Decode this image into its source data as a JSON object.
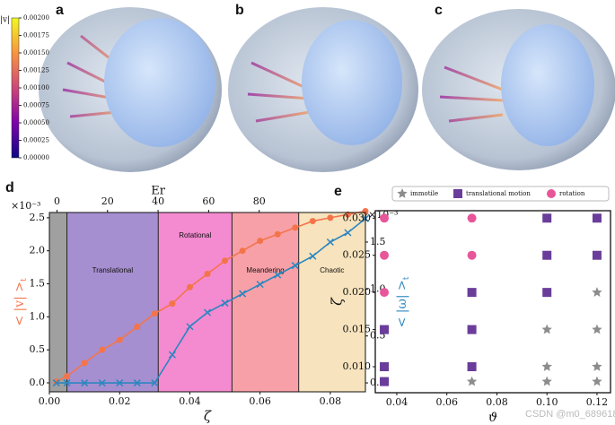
{
  "panels": [
    "a",
    "b",
    "c",
    "d",
    "e"
  ],
  "watermark": "CSDN @m0_68961828",
  "chart_data": [
    {
      "type": "colorbar",
      "label": "|v|",
      "colors": [
        "#0d0887",
        "#7e03a8",
        "#cc4778",
        "#f89540",
        "#f0f921"
      ],
      "lim": [
        0,
        0.002
      ],
      "ticks": [
        {
          "value": 0,
          "label": "0.00000"
        },
        {
          "value": 0.00025,
          "label": "0.00025"
        },
        {
          "value": 0.0005,
          "label": "0.00050"
        },
        {
          "value": 0.00075,
          "label": "0.00075"
        },
        {
          "value": 0.001,
          "label": "0.00100"
        },
        {
          "value": 0.00125,
          "label": "0.00125"
        },
        {
          "value": 0.0015,
          "label": "0.00150"
        },
        {
          "value": 0.00175,
          "label": "0.00175"
        },
        {
          "value": 0.002,
          "label": "0.00200"
        }
      ]
    },
    {
      "type": "line",
      "xlabel": "ζ",
      "x2label": "Er",
      "ylabel": "< |v| >",
      "ylabel_sub": "t",
      "y2label": "< |ω| >",
      "y2label_sub": "t",
      "yexponent": "×10⁻³",
      "y2exponent": "×10⁻³",
      "xlim": [
        0,
        0.09
      ],
      "xticks": [
        {
          "value": 0,
          "label": "0.00"
        },
        {
          "value": 0.02,
          "label": "0.02"
        },
        {
          "value": 0.04,
          "label": "0.04"
        },
        {
          "value": 0.06,
          "label": "0.06"
        },
        {
          "value": 0.08,
          "label": "0.08"
        }
      ],
      "x2lim": [
        -3,
        122
      ],
      "x2ticks": [
        0,
        20,
        40,
        60,
        80
      ],
      "ylim": [
        -0.136,
        2.58
      ],
      "yticks": [
        {
          "value": 0,
          "label": "0.0"
        },
        {
          "value": 0.5,
          "label": "0.5"
        },
        {
          "value": 1,
          "label": "1.0"
        },
        {
          "value": 1.5,
          "label": "1.5"
        },
        {
          "value": 2,
          "label": "2.0"
        },
        {
          "value": 2.5,
          "label": "2.5"
        }
      ],
      "y2lim": [
        -0.095,
        1.815
      ],
      "y2ticks": [
        {
          "value": 0,
          "label": "0.0"
        },
        {
          "value": 0.5,
          "label": "0.5"
        },
        {
          "value": 1,
          "label": "1.0"
        },
        {
          "value": 1.5,
          "label": "1.5"
        }
      ],
      "regions": [
        {
          "start": 0,
          "end": 0.005,
          "color": "#a0a0a0"
        },
        {
          "label": "Translational",
          "start": 0.005,
          "end": 0.031,
          "color": "#a68fd0"
        },
        {
          "label": "Rotational",
          "start": 0.031,
          "end": 0.052,
          "color": "#f48ad0"
        },
        {
          "label": "Meandering",
          "start": 0.052,
          "end": 0.071,
          "color": "#f7a0a8"
        },
        {
          "label": "Chaotic",
          "start": 0.071,
          "end": 0.09,
          "color": "#f7e3bd"
        }
      ],
      "x": [
        0.002,
        0.005,
        0.01,
        0.015,
        0.02,
        0.025,
        0.03,
        0.035,
        0.04,
        0.045,
        0.05,
        0.055,
        0.06,
        0.065,
        0.07,
        0.075,
        0.08,
        0.085,
        0.09
      ],
      "series": [
        {
          "color": "#f4744a",
          "marker": "circle",
          "values": [
            0.02,
            0.1,
            0.3,
            0.5,
            0.65,
            0.85,
            1.05,
            1.2,
            1.45,
            1.65,
            1.85,
            2.0,
            2.15,
            2.25,
            2.35,
            2.45,
            2.5,
            2.55,
            2.6
          ]
        },
        {
          "color": "#2b86c0",
          "marker": "x",
          "axis": "y2",
          "values": [
            0,
            0,
            0,
            0,
            0,
            0,
            0,
            0.3,
            0.6,
            0.75,
            0.85,
            0.95,
            1.05,
            1.15,
            1.25,
            1.35,
            1.5,
            1.6,
            1.75
          ]
        }
      ]
    },
    {
      "type": "scatter",
      "xlabel": "ϑ",
      "ylabel": "ζ",
      "xlim": [
        0.0314,
        0.1254
      ],
      "xticks": [
        0.04,
        0.06,
        0.08,
        {
          "value": 0.1,
          "label": "0.10"
        },
        0.12
      ],
      "ylim": [
        0.0065,
        0.031
      ],
      "yticks": [
        {
          "value": 0.01,
          "label": "0.010"
        },
        0.015,
        {
          "value": 0.02,
          "label": "0.020"
        },
        0.025,
        {
          "value": 0.03,
          "label": "0.030"
        }
      ],
      "series": [
        {
          "name": "immotile",
          "color": "#8c8c8c",
          "marker": "star",
          "x": [
            0.12,
            0.1,
            0.12,
            0.1,
            0.12,
            0.07,
            0.1,
            0.12
          ],
          "values": [
            0.02,
            0.015,
            0.015,
            0.01,
            0.01,
            0.008,
            0.008,
            0.008
          ]
        },
        {
          "name": "translational motion",
          "color": "#6a3d9a",
          "marker": "square",
          "x": [
            0.1,
            0.12,
            0.1,
            0.12,
            0.07,
            0.1,
            0.035,
            0.07,
            0.035,
            0.07,
            0.035
          ],
          "values": [
            0.03,
            0.03,
            0.025,
            0.025,
            0.02,
            0.02,
            0.015,
            0.015,
            0.01,
            0.01,
            0.008
          ]
        },
        {
          "name": "rotation",
          "color": "#e8569a",
          "marker": "circle",
          "x": [
            0.035,
            0.07,
            0.035,
            0.07,
            0.035
          ],
          "values": [
            0.03,
            0.03,
            0.025,
            0.025,
            0.02
          ]
        }
      ]
    }
  ]
}
